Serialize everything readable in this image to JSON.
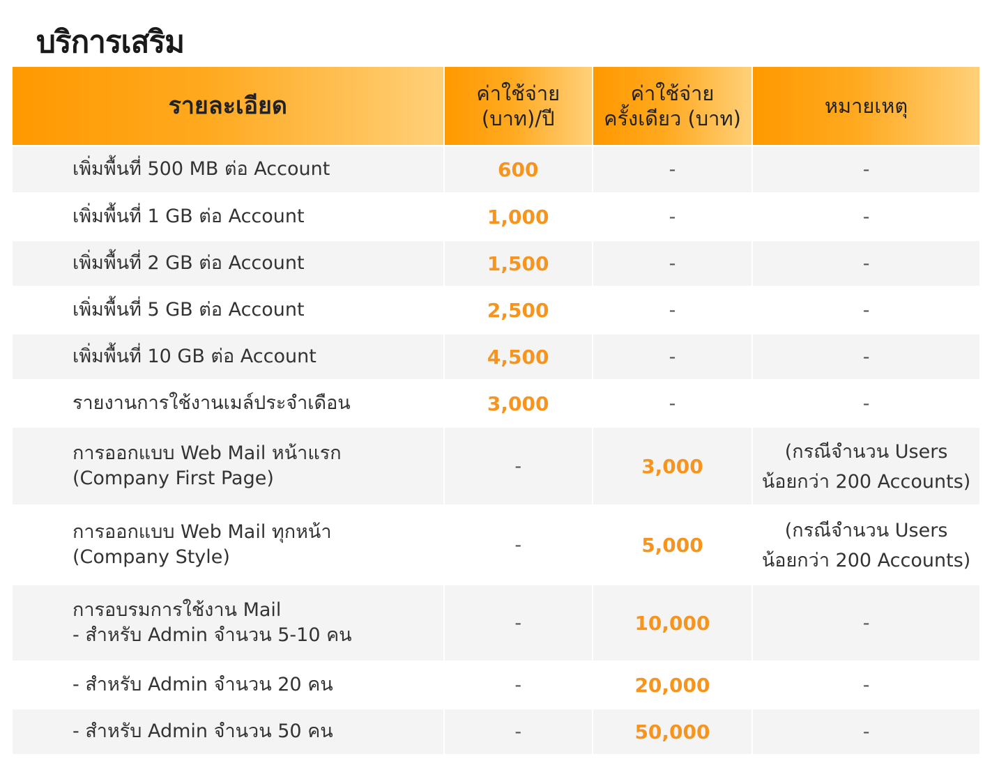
{
  "title": "บริการเสริม",
  "headers": [
    "รายละเอียด",
    "ค่าใช้จ่าย\n(บาท)/ปี",
    "ค่าใช้จ่าย\nครั้งเดียว (บาท)",
    "หมายเหตุ"
  ],
  "accent_color": "#f7941d",
  "rows": [
    {
      "detail": "เพิ่มพื้นที่ 500 MB ต่อ Account",
      "yearly": "600",
      "once": "-",
      "note": "-"
    },
    {
      "detail": "เพิ่มพื้นที่ 1 GB ต่อ Account",
      "yearly": "1,000",
      "once": "-",
      "note": "-"
    },
    {
      "detail": "เพิ่มพื้นที่ 2 GB ต่อ Account",
      "yearly": "1,500",
      "once": "-",
      "note": "-"
    },
    {
      "detail": "เพิ่มพื้นที่ 5 GB ต่อ Account",
      "yearly": "2,500",
      "once": "-",
      "note": "-"
    },
    {
      "detail": "เพิ่มพื้นที่ 10 GB ต่อ Account",
      "yearly": "4,500",
      "once": "-",
      "note": "-"
    },
    {
      "detail": "รายงานการใช้งานเมล์ประจำเดือน",
      "yearly": "3,000",
      "once": "-",
      "note": "-"
    },
    {
      "detail": "การออกแบบ Web Mail หน้าแรก\n(Company First Page)",
      "yearly": "-",
      "once": "3,000",
      "note": "(กรณีจำนวน Users\nน้อยกว่า 200 Accounts)"
    },
    {
      "detail": "การออกแบบ Web Mail ทุกหน้า\n(Company Style)",
      "yearly": "-",
      "once": "5,000",
      "note": "(กรณีจำนวน Users\nน้อยกว่า 200 Accounts)"
    },
    {
      "detail": "การอบรมการใช้งาน Mail\n- สำหรับ Admin จำนวน 5-10 คน",
      "yearly": "-",
      "once": "10,000",
      "note": "-"
    },
    {
      "detail": "- สำหรับ Admin จำนวน 20 คน",
      "yearly": "-",
      "once": "20,000",
      "note": "-"
    },
    {
      "detail": "- สำหรับ Admin จำนวน 50 คน",
      "yearly": "-",
      "once": "50,000",
      "note": "-"
    }
  ]
}
